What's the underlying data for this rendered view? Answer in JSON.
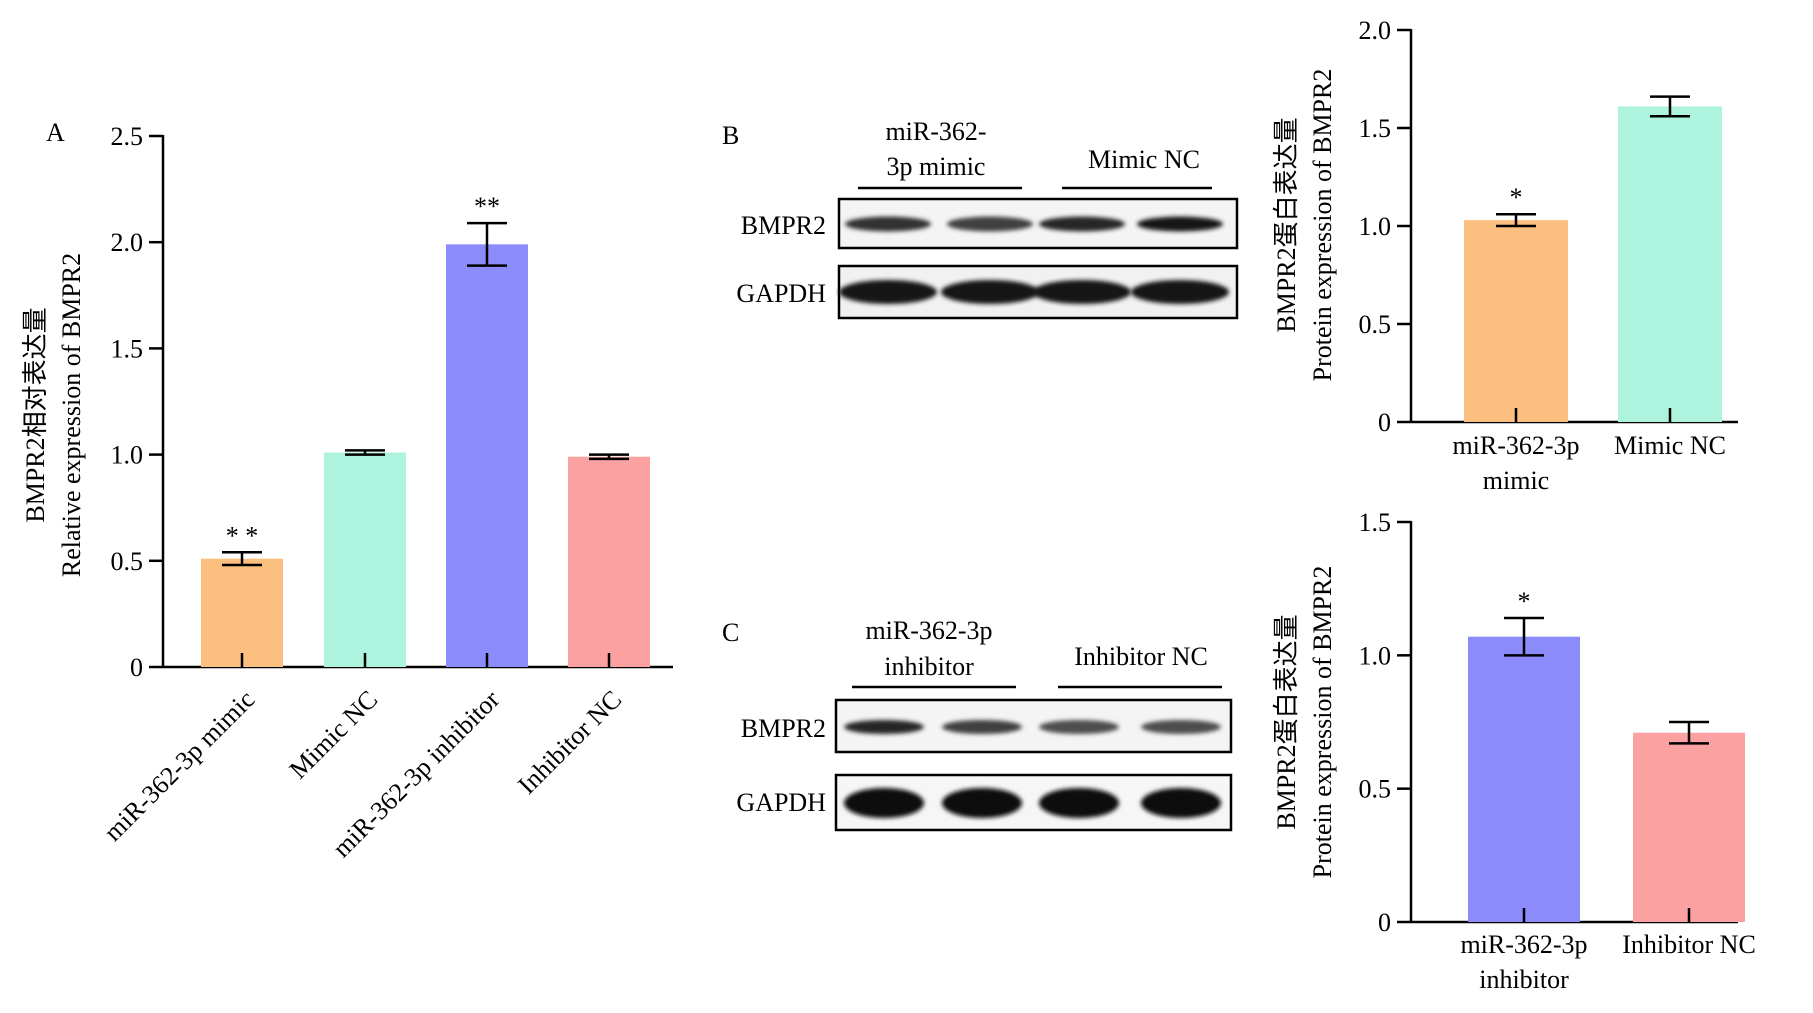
{
  "colors": {
    "mimic": "#FBBF80",
    "mimic_nc": "#AEF3DE",
    "inhibitor": "#8B8BFB",
    "inhibitor_nc": "#FCA1A1",
    "axis": "#000000"
  },
  "panels": {
    "a_label": "A",
    "b_label": "B",
    "c_label": "C"
  },
  "blot_b": {
    "group1_line1": "miR-362-",
    "group1_line2": "3p mimic",
    "group2": "Mimic NC",
    "row1": "BMPR2",
    "row2": "GAPDH",
    "band_intensity_row1": [
      0.8,
      0.75,
      0.85,
      0.9
    ],
    "band_intensity_row2": [
      0.9,
      0.9,
      0.9,
      0.9
    ]
  },
  "blot_c": {
    "group1_line1": "miR-362-3p",
    "group1_line2": "inhibitor",
    "group2": "Inhibitor NC",
    "row1": "BMPR2",
    "row2": "GAPDH",
    "band_intensity_row1": [
      0.85,
      0.75,
      0.7,
      0.7
    ],
    "band_intensity_row2": [
      0.95,
      0.95,
      0.95,
      0.95
    ]
  },
  "chart_data": [
    {
      "id": "A",
      "type": "bar",
      "ylabel_line1": "BMPR2相对表达量",
      "ylabel_line2": "Relative expression of BMPR2",
      "xlabel": "",
      "ylim": [
        0,
        2.5
      ],
      "yticks": [
        "0",
        "0.5",
        "1.0",
        "1.5",
        "2.0",
        "2.5"
      ],
      "categories": [
        "miR-362-3p mimic",
        "Mimic NC",
        "miR-362-3p inhibitor",
        "Inhibitor NC"
      ],
      "values": [
        0.51,
        1.01,
        1.99,
        0.99
      ],
      "errors": [
        0.03,
        0.01,
        0.1,
        0.01
      ],
      "significance": [
        "* *",
        "",
        "**",
        ""
      ],
      "colors": [
        "#FBBF80",
        "#AEF3DE",
        "#8B8BFB",
        "#FCA1A1"
      ]
    },
    {
      "id": "B-quant",
      "type": "bar",
      "ylabel_line1": "BMPR2蛋白表达量",
      "ylabel_line2": "Protein expression of BMPR2",
      "xlabel": "",
      "ylim": [
        0,
        2.0
      ],
      "yticks": [
        "0",
        "0.5",
        "1.0",
        "1.5",
        "2.0"
      ],
      "categories": [
        "miR-362-3p mimic",
        "Mimic NC"
      ],
      "category_lines": [
        [
          "miR-362-3p",
          "mimic"
        ],
        [
          "Mimic NC"
        ]
      ],
      "values": [
        1.03,
        1.61
      ],
      "errors": [
        0.03,
        0.05
      ],
      "significance": [
        "*",
        ""
      ],
      "colors": [
        "#FBBF80",
        "#AEF3DE"
      ]
    },
    {
      "id": "C-quant",
      "type": "bar",
      "ylabel_line1": "BMPR2蛋白表达量",
      "ylabel_line2": "Protein expression of BMPR2",
      "xlabel": "",
      "ylim": [
        0,
        1.5
      ],
      "yticks": [
        "0",
        "0.5",
        "1.0",
        "1.5"
      ],
      "categories": [
        "miR-362-3p inhibitor",
        "Inhibitor NC"
      ],
      "category_lines": [
        [
          "miR-362-3p",
          "inhibitor"
        ],
        [
          "Inhibitor NC"
        ]
      ],
      "values": [
        1.07,
        0.71
      ],
      "errors": [
        0.07,
        0.04
      ],
      "significance": [
        "*",
        ""
      ],
      "colors": [
        "#8B8BFB",
        "#FCA1A1"
      ]
    }
  ]
}
